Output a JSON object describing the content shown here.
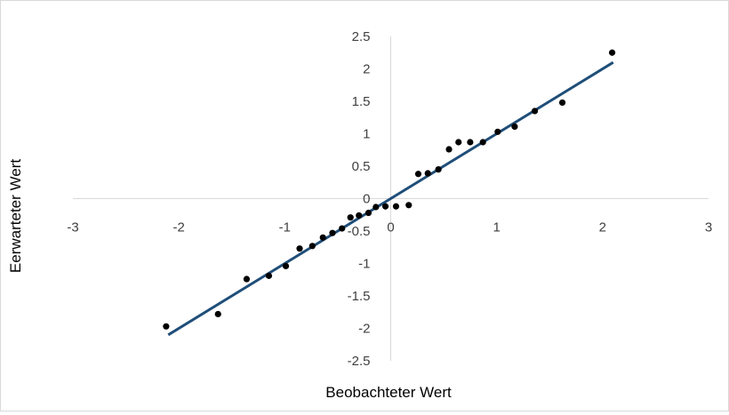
{
  "chart_data": {
    "type": "scatter",
    "title": "",
    "xlabel": "Beobachteter Wert",
    "ylabel": "Eerwarteter Wert",
    "xlim": [
      -3,
      3
    ],
    "ylim": [
      -2.5,
      2.5
    ],
    "x_ticks": [
      "-3",
      "-2",
      "-1",
      "0",
      "1",
      "2",
      "3"
    ],
    "y_ticks": [
      "2.5",
      "2",
      "1.5",
      "1",
      "0.5",
      "0",
      "-0.5",
      "-1",
      "-1.5",
      "-2",
      "-2.5"
    ],
    "grid": false,
    "legend": "none",
    "marker_color": "#000000",
    "line_color": "#1f4e79",
    "points": [
      {
        "x": -2.12,
        "y": -1.97
      },
      {
        "x": -1.63,
        "y": -1.78
      },
      {
        "x": -1.36,
        "y": -1.24
      },
      {
        "x": -1.15,
        "y": -1.19
      },
      {
        "x": -0.99,
        "y": -1.04
      },
      {
        "x": -0.86,
        "y": -0.77
      },
      {
        "x": -0.74,
        "y": -0.73
      },
      {
        "x": -0.64,
        "y": -0.6
      },
      {
        "x": -0.55,
        "y": -0.53
      },
      {
        "x": -0.46,
        "y": -0.46
      },
      {
        "x": -0.38,
        "y": -0.29
      },
      {
        "x": -0.3,
        "y": -0.26
      },
      {
        "x": -0.21,
        "y": -0.22
      },
      {
        "x": -0.14,
        "y": -0.13
      },
      {
        "x": -0.05,
        "y": -0.12
      },
      {
        "x": 0.05,
        "y": -0.12
      },
      {
        "x": 0.17,
        "y": -0.1
      },
      {
        "x": 0.26,
        "y": 0.38
      },
      {
        "x": 0.35,
        "y": 0.39
      },
      {
        "x": 0.45,
        "y": 0.45
      },
      {
        "x": 0.55,
        "y": 0.76
      },
      {
        "x": 0.64,
        "y": 0.87
      },
      {
        "x": 0.75,
        "y": 0.87
      },
      {
        "x": 0.87,
        "y": 0.87
      },
      {
        "x": 1.01,
        "y": 1.03
      },
      {
        "x": 1.17,
        "y": 1.11
      },
      {
        "x": 1.36,
        "y": 1.35
      },
      {
        "x": 1.62,
        "y": 1.48
      },
      {
        "x": 2.09,
        "y": 2.25
      }
    ],
    "trendline": [
      {
        "x": -2.1,
        "y": -2.1
      },
      {
        "x": 2.1,
        "y": 2.1
      }
    ]
  }
}
